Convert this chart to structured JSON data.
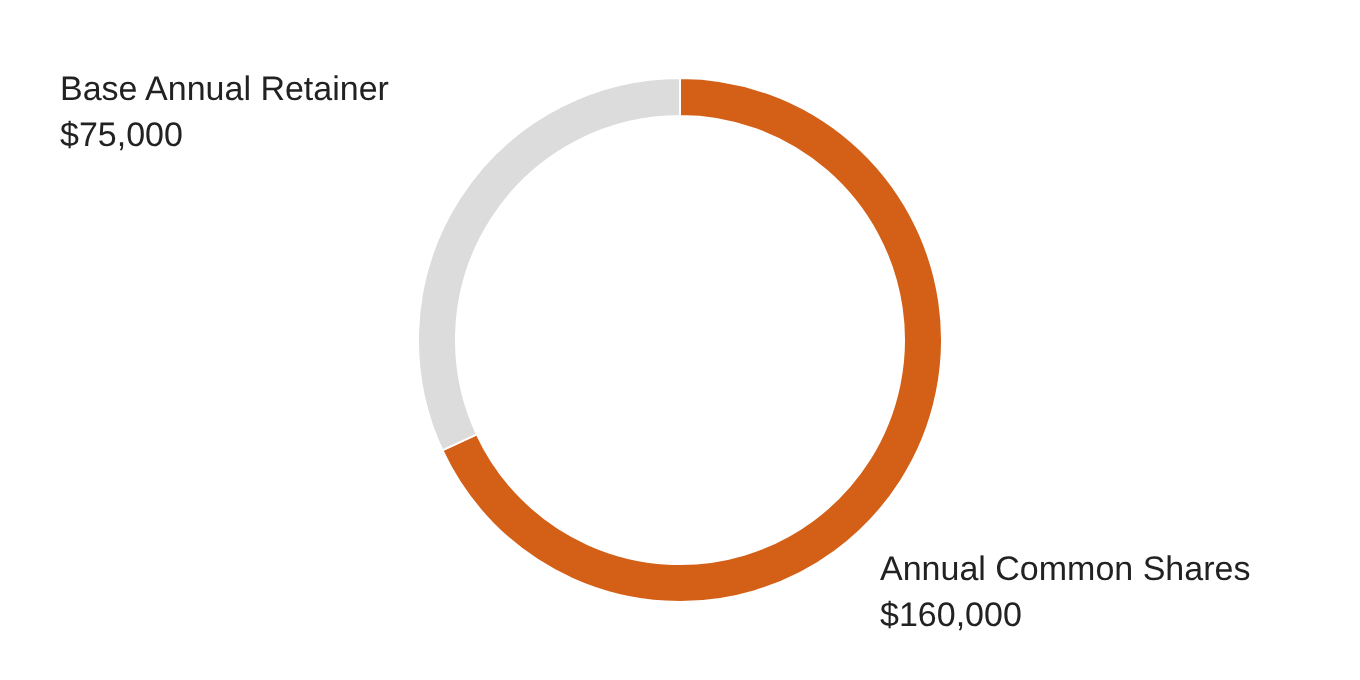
{
  "chart_data": {
    "type": "donut",
    "categories": [
      "Annual Common Shares",
      "Base Annual Retainer"
    ],
    "values": [
      160000,
      75000
    ],
    "value_labels": [
      "$160,000",
      "$75,000"
    ],
    "colors": [
      "#d45f16",
      "#dcdcdd"
    ]
  }
}
